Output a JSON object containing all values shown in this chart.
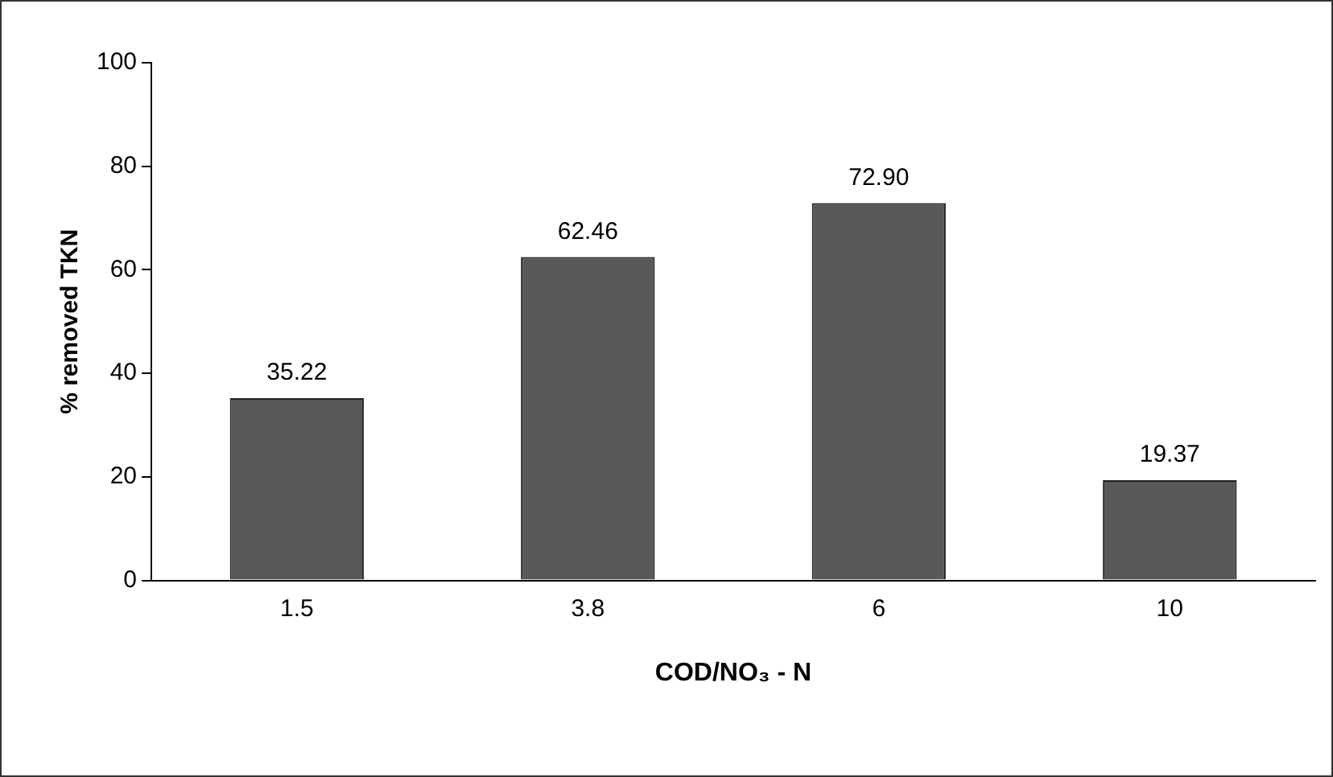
{
  "chart_data": {
    "type": "bar",
    "xlabel": "COD/NO₃ - N",
    "ylabel": "% removed TKN",
    "categories": [
      "1.5",
      "3.8",
      "6",
      "10"
    ],
    "values": [
      35.22,
      62.46,
      72.9,
      19.37
    ],
    "value_labels": [
      "35.22",
      "62.46",
      "72.90",
      "19.37"
    ],
    "color": "#585858",
    "ylim": [
      0,
      100
    ],
    "yticks": [
      0,
      20,
      40,
      60,
      80,
      100
    ],
    "grid": false,
    "legend": false
  }
}
